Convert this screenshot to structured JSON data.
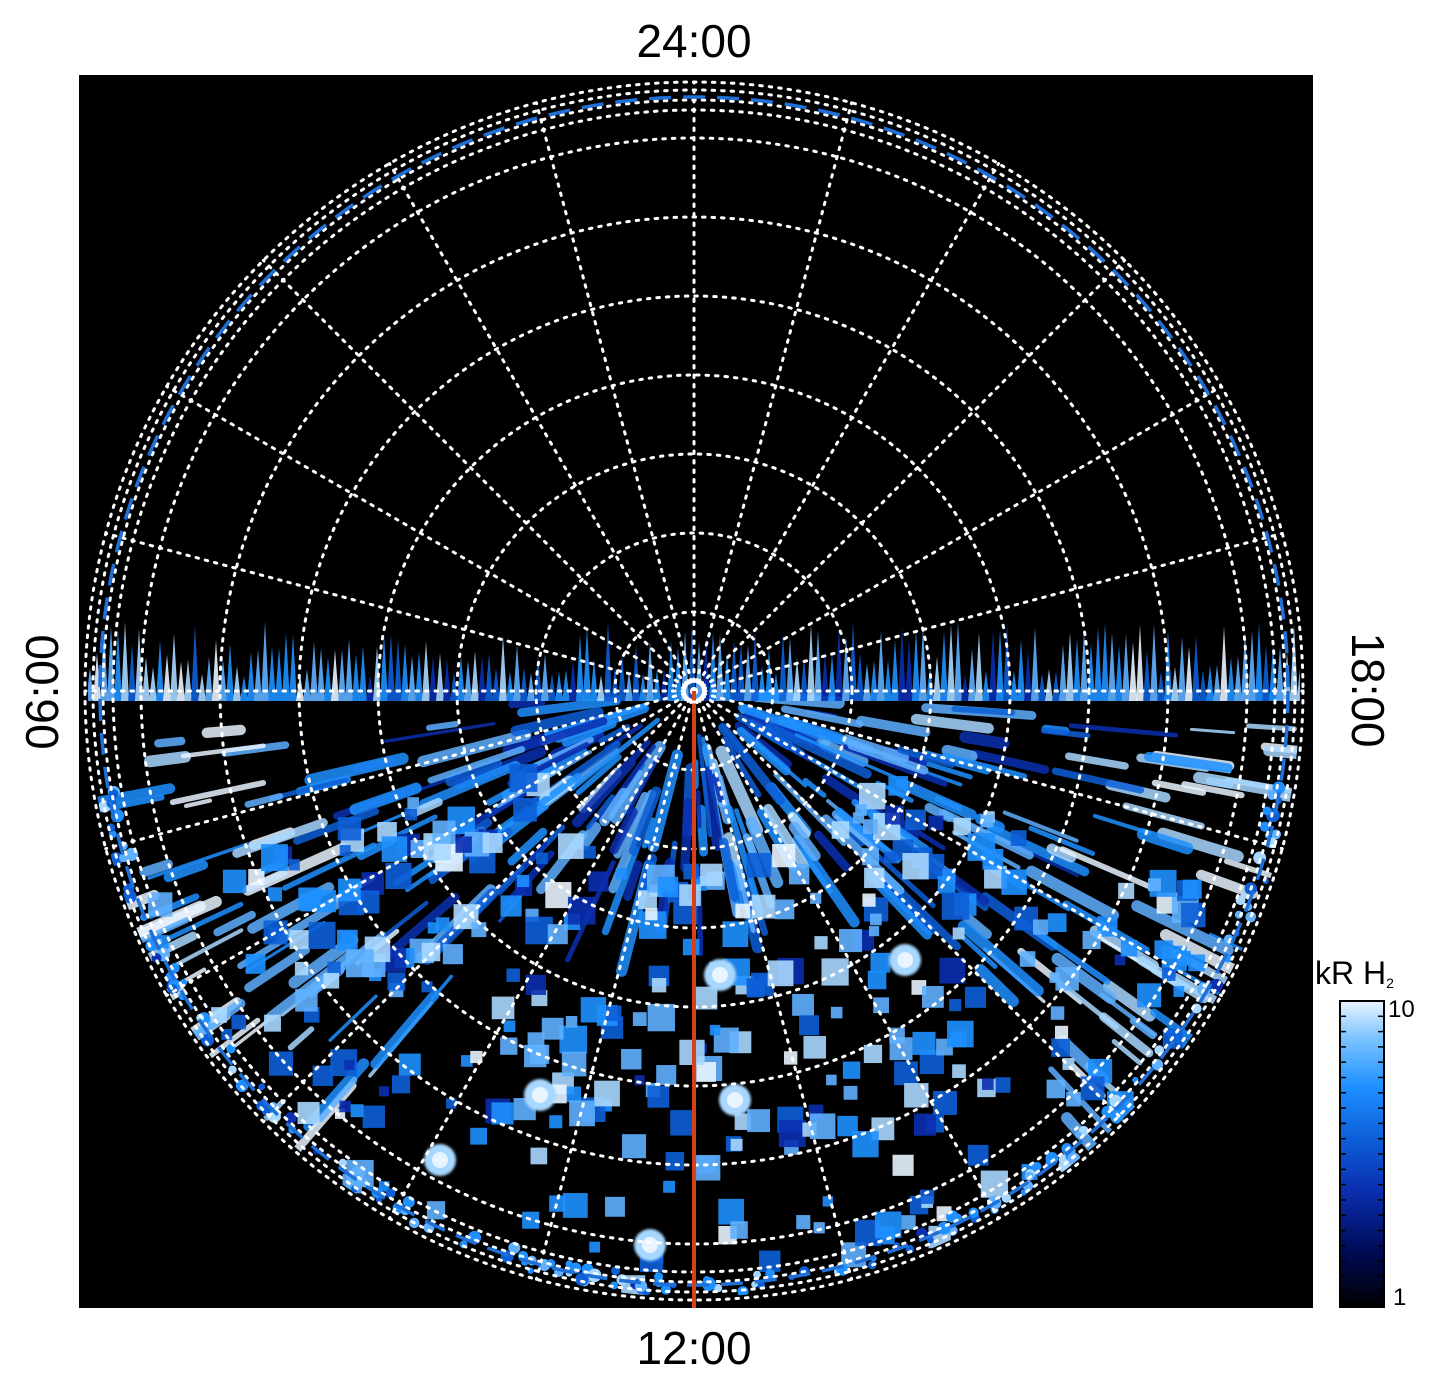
{
  "labels": {
    "top": "24:00",
    "bottom": "12:00",
    "left": "06:00",
    "right": "18:00"
  },
  "colorbar": {
    "title": "kR H",
    "title_subscript": "2",
    "max_label": "10",
    "min_label": "1",
    "colors": [
      "#000000",
      "#000a55",
      "#0a2fb0",
      "#0d5fd8",
      "#1e90ff",
      "#7cc4ff",
      "#e8f4ff"
    ]
  },
  "colors": {
    "background": "#000000",
    "grid": "#ffffff",
    "reference_dashed": "#1f6fd6",
    "meridian": "#d8401b"
  }
}
